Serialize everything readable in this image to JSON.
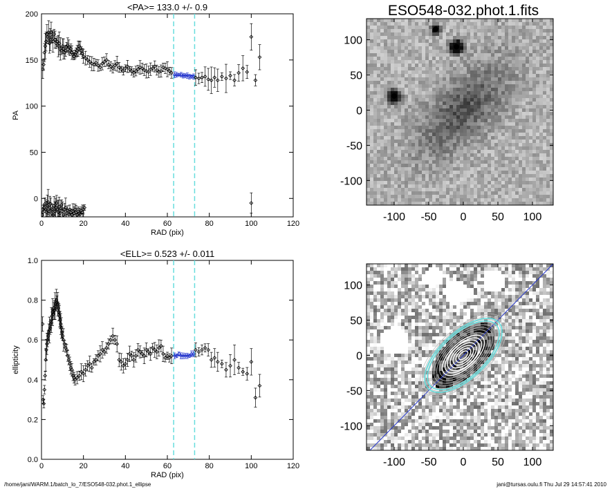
{
  "footer": {
    "left": "/home/jani/WARM.1/batch_lo_7/ESO548-032.phot.1_ellipse",
    "right": "jani@tursas.oulu.fi  Thu Jul 29 14:57:41 2010"
  },
  "colors": {
    "axis": "#000000",
    "marker": "#000000",
    "fit": "#2233cc",
    "limit_line": "#66dddd"
  },
  "chart_data": [
    {
      "type": "scatter",
      "title": "<PA>= 133.0 +/-   0.9",
      "xlabel": "RAD (pix)",
      "ylabel": "PA",
      "xlim": [
        0,
        120
      ],
      "ylim": [
        -20,
        200
      ],
      "xticks": [
        0,
        20,
        40,
        60,
        80,
        100,
        120
      ],
      "yticks": [
        0,
        50,
        100,
        150,
        200
      ],
      "vlines": [
        63,
        73
      ],
      "fit": {
        "x": [
          63,
          73
        ],
        "y": [
          133.0,
          133.0
        ]
      },
      "series": [
        {
          "x": [
            0.6,
            1.0,
            1.4,
            1.8,
            2.2,
            2.6,
            3.0,
            3.4,
            3.8,
            4.2,
            4.6,
            5.0,
            5.5,
            6.0,
            6.5,
            7.0,
            7.5,
            8.0,
            8.5,
            9.0,
            9.5,
            10.0,
            10.5,
            11.0,
            11.5,
            12.0,
            12.5,
            13.0,
            13.5,
            14.0,
            14.5,
            15.0,
            15.5,
            16.0,
            16.5,
            17.0,
            17.5,
            18.0,
            18.5,
            19.0,
            19.5,
            20.0,
            21.0,
            22.0,
            23.0,
            24.0,
            25.0,
            26.0,
            27.0,
            28.0,
            29.0,
            30.0,
            31.0,
            32.0,
            33.0,
            34.0,
            35.0,
            36.0,
            37.0,
            38.0,
            39.0,
            40.0,
            41.0,
            42.0,
            43.0,
            44.0,
            45.0,
            46.0,
            47.0,
            48.0,
            49.0,
            50.0,
            51.0,
            52.0,
            53.0,
            54.0,
            55.0,
            56.0,
            57.0,
            58.0,
            59.0,
            60.0,
            61.0,
            62.0,
            63.5,
            64.5,
            65.5,
            66.5,
            67.5,
            68.5,
            69.5,
            70.5,
            71.5,
            72.5,
            73.5,
            75.0,
            76.5,
            78.0,
            79.5,
            81.0,
            82.5,
            84.0,
            86.0,
            88.0,
            90.0,
            92.0,
            94.0,
            96.0,
            98.0,
            100.0,
            102.0,
            104.0
          ],
          "y": [
            140,
            145,
            158,
            165,
            170,
            178,
            175,
            180,
            168,
            172,
            180,
            175,
            170,
            178,
            172,
            168,
            170,
            165,
            168,
            162,
            160,
            165,
            162,
            158,
            160,
            164,
            166,
            164,
            160,
            162,
            158,
            156,
            154,
            156,
            158,
            160,
            162,
            165,
            163,
            160,
            157,
            154,
            152,
            150,
            148,
            146,
            145,
            147,
            144,
            142,
            146,
            148,
            150,
            145,
            143,
            141,
            144,
            146,
            142,
            140,
            138,
            141,
            143,
            140,
            138,
            136,
            138,
            140,
            142,
            141,
            139,
            138,
            137,
            140,
            141,
            143,
            139,
            137,
            138,
            142,
            141,
            140,
            138,
            136,
            134,
            134,
            134,
            134,
            133,
            133,
            133,
            132,
            132,
            132,
            131,
            130,
            131,
            132,
            129,
            128,
            131,
            128,
            132,
            130,
            133,
            128,
            136,
            141,
            137,
            175,
            128,
            153
          ]
        },
        {
          "x": [
            0.4,
            0.8,
            1.2,
            1.6,
            2.0,
            2.4,
            2.8,
            3.2,
            3.6,
            4.0,
            4.4,
            4.8,
            5.2,
            5.6,
            6.0,
            6.4,
            6.8,
            7.2,
            7.6,
            8.0,
            8.4,
            8.8,
            9.2,
            9.6,
            10.0,
            10.5,
            11.0,
            11.5,
            12.0,
            12.5,
            13.0,
            13.5,
            14.0,
            14.5,
            15.0,
            15.5,
            16.0,
            16.5,
            17.0,
            17.5,
            18.0,
            18.5,
            19.0,
            19.5,
            20.0,
            20.5
          ],
          "y": [
            -18,
            -15,
            -10,
            -6,
            -12,
            -15,
            -8,
            -4,
            -14,
            -10,
            -6,
            -16,
            -12,
            -18,
            -8,
            -14,
            -10,
            -5,
            -12,
            -15,
            -9,
            -16,
            -11,
            -7,
            -14,
            -18,
            -12,
            -10,
            -16,
            -13,
            -17,
            -12,
            -15,
            -18,
            -14,
            -16,
            -12,
            -15,
            -18,
            -14,
            -16,
            -17,
            -13,
            -15,
            -12,
            -10
          ]
        },
        {
          "x": [
            100
          ],
          "y": [
            -5
          ]
        }
      ]
    },
    {
      "type": "scatter",
      "title": "<ELL>= 0.523 +/-  0.011",
      "xlabel": "RAD (pix)",
      "ylabel": "ellipticity",
      "xlim": [
        0,
        120
      ],
      "ylim": [
        0.0,
        1.0
      ],
      "xticks": [
        0,
        20,
        40,
        60,
        80,
        100,
        120
      ],
      "yticks": [
        0.0,
        0.2,
        0.4,
        0.6,
        0.8,
        1.0
      ],
      "vlines": [
        63,
        73
      ],
      "fit": {
        "x": [
          63,
          73
        ],
        "y": [
          0.523,
          0.523
        ]
      },
      "series": [
        {
          "x": [
            0.5,
            0.8,
            1.1,
            1.4,
            1.7,
            2.0,
            2.3,
            2.6,
            2.9,
            3.2,
            3.5,
            3.8,
            4.1,
            4.4,
            4.7,
            5.0,
            5.3,
            5.6,
            5.9,
            6.2,
            6.5,
            6.8,
            7.1,
            7.4,
            7.7,
            8.0,
            8.3,
            8.6,
            8.9,
            9.2,
            9.5,
            9.8,
            10.1,
            10.5,
            11.0,
            11.5,
            12.0,
            12.5,
            13.0,
            13.5,
            14.0,
            14.5,
            15.0,
            15.5,
            16.0,
            17.0,
            18.0,
            19.0,
            20.0,
            21.0,
            22.0,
            23.0,
            24.0,
            25.0,
            26.0,
            27.0,
            28.0,
            29.0,
            30.0,
            31.0,
            32.0,
            33.0,
            34.0,
            35.0,
            36.0,
            37.0,
            38.0,
            39.0,
            40.0,
            41.0,
            42.0,
            43.0,
            44.0,
            45.0,
            46.0,
            47.0,
            48.0,
            49.0,
            50.0,
            51.0,
            52.0,
            53.0,
            54.0,
            55.0,
            56.0,
            57.0,
            58.0,
            59.0,
            60.0,
            61.0,
            62.0,
            63.5,
            64.5,
            65.5,
            66.5,
            67.5,
            68.5,
            69.5,
            70.5,
            71.5,
            72.5,
            73.5,
            75.0,
            76.5,
            78.0,
            79.5,
            81.0,
            82.5,
            84.0,
            86.0,
            88.0,
            90.0,
            92.0,
            94.0,
            96.0,
            98.0,
            100.0,
            102.0,
            104.0
          ],
          "y": [
            0.68,
            0.3,
            0.28,
            0.35,
            0.42,
            0.5,
            0.55,
            0.58,
            0.6,
            0.62,
            0.64,
            0.65,
            0.66,
            0.68,
            0.7,
            0.72,
            0.74,
            0.73,
            0.76,
            0.75,
            0.77,
            0.78,
            0.8,
            0.79,
            0.78,
            0.76,
            0.74,
            0.72,
            0.7,
            0.68,
            0.66,
            0.64,
            0.62,
            0.6,
            0.58,
            0.56,
            0.55,
            0.52,
            0.5,
            0.48,
            0.46,
            0.45,
            0.42,
            0.41,
            0.4,
            0.41,
            0.42,
            0.44,
            0.43,
            0.45,
            0.47,
            0.48,
            0.46,
            0.49,
            0.5,
            0.52,
            0.53,
            0.55,
            0.54,
            0.56,
            0.58,
            0.6,
            0.62,
            0.6,
            0.58,
            0.5,
            0.49,
            0.47,
            0.48,
            0.5,
            0.53,
            0.52,
            0.5,
            0.52,
            0.55,
            0.54,
            0.53,
            0.52,
            0.55,
            0.54,
            0.53,
            0.56,
            0.55,
            0.54,
            0.56,
            0.57,
            0.53,
            0.51,
            0.52,
            0.51,
            0.52,
            0.52,
            0.52,
            0.53,
            0.52,
            0.52,
            0.52,
            0.52,
            0.52,
            0.53,
            0.53,
            0.55,
            0.54,
            0.55,
            0.56,
            0.55,
            0.5,
            0.51,
            0.49,
            0.48,
            0.45,
            0.47,
            0.5,
            0.46,
            0.44,
            0.43,
            0.49,
            0.31,
            0.37
          ]
        }
      ]
    },
    {
      "type": "heatmap",
      "title": "ESO548-032.phot.1.fits",
      "xlim": [
        -140,
        130
      ],
      "ylim": [
        -135,
        130
      ],
      "xticks": [
        -100,
        -50,
        0,
        50,
        100
      ],
      "yticks": [
        -100,
        -50,
        0,
        50,
        100
      ],
      "blobs": [
        {
          "x": -100,
          "y": 20,
          "amp": 1.0,
          "sigma": 6
        },
        {
          "x": -10,
          "y": 90,
          "amp": 1.0,
          "sigma": 6
        },
        {
          "x": -40,
          "y": 115,
          "amp": 0.6,
          "sigma": 5
        },
        {
          "x": 0,
          "y": 0,
          "amp": 0.45,
          "sigma": 38
        }
      ]
    },
    {
      "type": "heatmap",
      "title": "",
      "xlim": [
        -140,
        130
      ],
      "ylim": [
        -135,
        130
      ],
      "xticks": [
        -100,
        -50,
        0,
        50,
        100
      ],
      "yticks": [
        -100,
        -50,
        0,
        50,
        100
      ],
      "diagonal_line": [
        [
          -140,
          -140
        ],
        [
          130,
          130
        ]
      ],
      "ellipse": {
        "cx": 0,
        "cy": 0,
        "semi_major": 65,
        "ellipticity": 0.523,
        "pa_deg": 43
      },
      "masks": [
        {
          "x": -100,
          "y": 20,
          "r": 20
        },
        {
          "x": -10,
          "y": 90,
          "r": 18
        },
        {
          "x": -45,
          "y": 110,
          "r": 14
        },
        {
          "x": 45,
          "y": 105,
          "r": 16
        },
        {
          "x": -50,
          "y": -10,
          "r": 10
        }
      ]
    }
  ]
}
